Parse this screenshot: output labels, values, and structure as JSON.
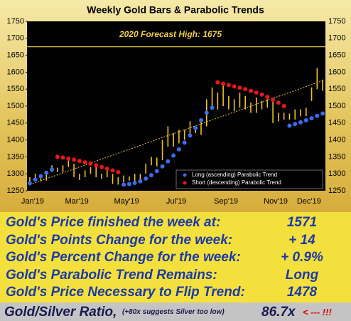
{
  "chart_data": {
    "type": "bar-trend",
    "title": "Weekly Gold Bars & Parabolic Trends",
    "categories": [
      "Jan'19",
      null,
      null,
      null,
      null,
      null,
      null,
      null,
      "Mar'19",
      null,
      null,
      null,
      null,
      null,
      null,
      null,
      null,
      "May'19",
      null,
      null,
      null,
      null,
      null,
      null,
      null,
      null,
      "Jul'19",
      null,
      null,
      null,
      null,
      null,
      null,
      null,
      null,
      "Sep'19",
      null,
      null,
      null,
      null,
      null,
      null,
      null,
      null,
      "Nov'19",
      null,
      null,
      null,
      null,
      null,
      "Dec'19",
      null,
      null,
      null
    ],
    "bars": {
      "color": "#f2c21e",
      "low": [
        1275,
        1280,
        1278,
        1280,
        1305,
        1305,
        1305,
        1320,
        1290,
        1282,
        1290,
        1300,
        1290,
        1285,
        1290,
        1270,
        1268,
        1275,
        1280,
        1275,
        1280,
        1300,
        1325,
        1322,
        1340,
        1380,
        1380,
        1390,
        1400,
        1410,
        1420,
        1415,
        1440,
        1500,
        1490,
        1500,
        1490,
        1485,
        1495,
        1490,
        1480,
        1480,
        1490,
        1495,
        1450,
        1455,
        1460,
        1460,
        1460,
        1470,
        1470,
        1515,
        1550,
        1545
      ],
      "high": [
        1290,
        1300,
        1298,
        1305,
        1325,
        1318,
        1325,
        1347,
        1330,
        1300,
        1310,
        1320,
        1325,
        1300,
        1310,
        1300,
        1290,
        1295,
        1292,
        1300,
        1300,
        1330,
        1350,
        1348,
        1400,
        1440,
        1420,
        1430,
        1430,
        1455,
        1440,
        1460,
        1520,
        1555,
        1540,
        1566,
        1530,
        1520,
        1540,
        1530,
        1510,
        1525,
        1515,
        1520,
        1515,
        1480,
        1480,
        1478,
        1490,
        1490,
        1495,
        1555,
        1612,
        1578
      ]
    },
    "series": [
      {
        "name": "Long (ascending) Parabolic Trend",
        "color": "#3a6cf0",
        "values": [
          1272,
          1283,
          1293,
          1303,
          1313,
          null,
          null,
          null,
          null,
          null,
          null,
          null,
          null,
          null,
          null,
          null,
          null,
          1268,
          1270,
          1273,
          1278,
          1286,
          1296,
          1308,
          1322,
          1337,
          1354,
          1372,
          1392,
          1413,
          1435,
          1458,
          1480,
          1495,
          null,
          null,
          null,
          null,
          null,
          null,
          null,
          null,
          null,
          null,
          null,
          null,
          null,
          1442,
          1447,
          1452,
          1458,
          1464,
          1471,
          1478
        ]
      },
      {
        "name": "Short (descending) Parabolic Trend",
        "color": "#e81818",
        "values": [
          null,
          null,
          null,
          null,
          null,
          1350,
          1348,
          1345,
          1342,
          1338,
          1334,
          1330,
          1325,
          1320,
          1315,
          1310,
          1305,
          null,
          null,
          null,
          null,
          null,
          null,
          null,
          null,
          null,
          null,
          null,
          null,
          null,
          null,
          null,
          null,
          null,
          1570,
          1566,
          1562,
          1558,
          1554,
          1550,
          1545,
          1540,
          1534,
          1527,
          1519,
          1510,
          1500,
          null,
          null,
          null,
          null,
          null,
          null,
          null
        ]
      }
    ],
    "trend": {
      "color": "#f0d030",
      "x": [
        0,
        53
      ],
      "values": [
        1268,
        1575
      ]
    },
    "forecast": {
      "label": "2020 Forecast High:  1675",
      "value": 1675,
      "color": "#f0d040"
    },
    "ylim": [
      1250,
      1750
    ],
    "yticks": [
      1250,
      1300,
      1350,
      1400,
      1450,
      1500,
      1550,
      1600,
      1650,
      1700,
      1750
    ],
    "legend": "lower right"
  },
  "table": {
    "rows": [
      [
        "Gold's Price finished the week at:",
        "1571"
      ],
      [
        "Gold's Points Change for the week:",
        "+ 14"
      ],
      [
        "Gold's Percent Change for the week:",
        "+ 0.9%"
      ],
      [
        "Gold's Parabolic Trend Remains:",
        "Long"
      ],
      [
        "Gold's Price Necessary to Flip Trend:",
        "1478"
      ]
    ]
  },
  "ratio": {
    "label": "Gold/Silver Ratio,",
    "note": "(+80x suggests Silver too low)",
    "value": "86.7x",
    "alert": "< --- !!!"
  }
}
